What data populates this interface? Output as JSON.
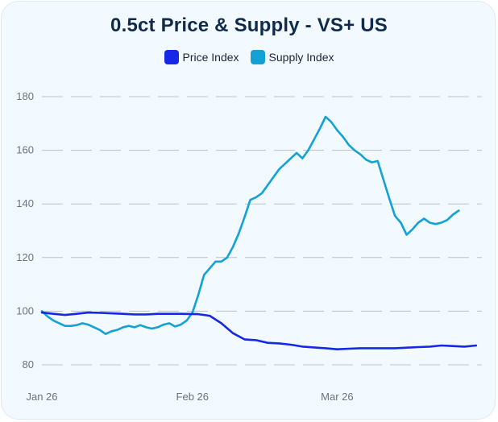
{
  "chart_data": {
    "type": "line",
    "title": "0.5ct Price & Supply - VS+ US",
    "xlabel": "",
    "ylabel": "",
    "ylim": [
      80,
      180
    ],
    "yticks": [
      80,
      100,
      120,
      140,
      160,
      180
    ],
    "xlim": [
      0,
      76
    ],
    "xticks": [
      {
        "label": "Jan 26",
        "x": 0
      },
      {
        "label": "Feb 26",
        "x": 26
      },
      {
        "label": "Mar 26",
        "x": 51
      }
    ],
    "grid": true,
    "legend_position": "top-center",
    "series": [
      {
        "name": "Price Index",
        "color": "#1528e6",
        "points": [
          [
            0,
            99.5
          ],
          [
            2,
            99
          ],
          [
            4,
            98.6
          ],
          [
            6,
            99
          ],
          [
            8,
            99.5
          ],
          [
            10,
            99.4
          ],
          [
            12,
            99.2
          ],
          [
            14,
            99
          ],
          [
            16,
            98.8
          ],
          [
            18,
            98.8
          ],
          [
            20,
            99
          ],
          [
            22,
            99
          ],
          [
            24,
            99
          ],
          [
            27,
            98.9
          ],
          [
            29,
            98.3
          ],
          [
            31,
            95.5
          ],
          [
            33,
            91.8
          ],
          [
            35,
            89.5
          ],
          [
            37,
            89.2
          ],
          [
            39,
            88.2
          ],
          [
            41,
            88
          ],
          [
            43,
            87.5
          ],
          [
            45,
            86.8
          ],
          [
            47,
            86.5
          ],
          [
            49,
            86.2
          ],
          [
            51,
            85.8
          ],
          [
            53,
            86
          ],
          [
            55,
            86.2
          ],
          [
            57,
            86.2
          ],
          [
            59,
            86.2
          ],
          [
            61,
            86.2
          ],
          [
            63,
            86.4
          ],
          [
            65,
            86.6
          ],
          [
            67,
            86.8
          ],
          [
            69,
            87.2
          ],
          [
            71,
            87
          ],
          [
            73,
            86.8
          ],
          [
            75,
            87.2
          ]
        ]
      },
      {
        "name": "Supply Index",
        "color": "#12a2d6",
        "points": [
          [
            0,
            100
          ],
          [
            1,
            98
          ],
          [
            2,
            96.5
          ],
          [
            3,
            95.5
          ],
          [
            4,
            94.5
          ],
          [
            5,
            94.5
          ],
          [
            6,
            94.8
          ],
          [
            7,
            95.5
          ],
          [
            8,
            95
          ],
          [
            9,
            94
          ],
          [
            10,
            93
          ],
          [
            11,
            91.5
          ],
          [
            12,
            92.5
          ],
          [
            13,
            93
          ],
          [
            14,
            94
          ],
          [
            15,
            94.5
          ],
          [
            16,
            94
          ],
          [
            17,
            94.8
          ],
          [
            18,
            94
          ],
          [
            19,
            93.5
          ],
          [
            20,
            94
          ],
          [
            21,
            95
          ],
          [
            22,
            95.5
          ],
          [
            23,
            94.3
          ],
          [
            24,
            95
          ],
          [
            25,
            96.5
          ],
          [
            26,
            99.5
          ],
          [
            27,
            106
          ],
          [
            28,
            113.5
          ],
          [
            29,
            116
          ],
          [
            30,
            118.5
          ],
          [
            31,
            118.5
          ],
          [
            32,
            120
          ],
          [
            33,
            124
          ],
          [
            34,
            129
          ],
          [
            35,
            135
          ],
          [
            36,
            141.5
          ],
          [
            37,
            142.5
          ],
          [
            38,
            144
          ],
          [
            39,
            147
          ],
          [
            40,
            150
          ],
          [
            41,
            153
          ],
          [
            42,
            155
          ],
          [
            43,
            157
          ],
          [
            44,
            159
          ],
          [
            45,
            157
          ],
          [
            46,
            160
          ],
          [
            47,
            164
          ],
          [
            48,
            168
          ],
          [
            49,
            172.5
          ],
          [
            50,
            170.5
          ],
          [
            51,
            167.5
          ],
          [
            52,
            165
          ],
          [
            53,
            162
          ],
          [
            54,
            160
          ],
          [
            55,
            158.5
          ],
          [
            56,
            156.5
          ],
          [
            57,
            155.5
          ],
          [
            58,
            156
          ],
          [
            59,
            149
          ],
          [
            60,
            142
          ],
          [
            61,
            135.5
          ],
          [
            62,
            133
          ],
          [
            63,
            128.5
          ],
          [
            64,
            130.5
          ],
          [
            65,
            133
          ],
          [
            66,
            134.5
          ],
          [
            67,
            133
          ],
          [
            68,
            132.5
          ],
          [
            69,
            133
          ],
          [
            70,
            134
          ],
          [
            71,
            136
          ],
          [
            72,
            137.5
          ]
        ]
      }
    ]
  }
}
